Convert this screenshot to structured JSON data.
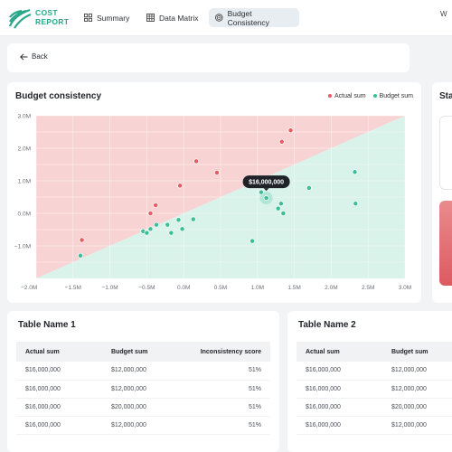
{
  "brand": {
    "line1": "COST",
    "line2": "REPORT",
    "accent": "#2aa889"
  },
  "nav": [
    {
      "label": "Summary",
      "icon": "grid-icon"
    },
    {
      "label": "Data Matrix",
      "icon": "table-icon"
    },
    {
      "label": "Budget Consistency",
      "icon": "target-icon",
      "active": true
    }
  ],
  "topright_text": "W",
  "back_label": "Back",
  "chart": {
    "title": "Budget consistency",
    "legend": [
      {
        "name": "Actual sum",
        "color": "#e35d63"
      },
      {
        "name": "Budget sum",
        "color": "#3bbf98"
      }
    ],
    "tooltip": "$16,000,000"
  },
  "chart_data": {
    "type": "scatter",
    "x_ticks": [
      "−1.5M",
      "−1.0M",
      "−0.5M",
      "0.0M",
      "0.5M",
      "1.0M",
      "1.5M",
      "2.0M",
      "2.5M",
      "3.0M"
    ],
    "x_edge_label": "−2.0M",
    "y_ticks": [
      "3.0M",
      "2.0M",
      "1.0M",
      "0.0M",
      "−1.0M"
    ],
    "xlim": [
      -2.0,
      3.0
    ],
    "ylim": [
      -2.0,
      3.0
    ],
    "grid": true,
    "regions": {
      "above_diagonal": "#f8d3d4",
      "below_diagonal": "#d9f2ea"
    },
    "series": [
      {
        "name": "Actual sum",
        "color": "#e35d63",
        "points": [
          [
            -1.38,
            -0.82
          ],
          [
            -0.45,
            0.0
          ],
          [
            -0.38,
            0.25
          ],
          [
            -0.05,
            0.85
          ],
          [
            0.17,
            1.6
          ],
          [
            0.45,
            1.25
          ],
          [
            1.33,
            2.2
          ],
          [
            1.45,
            2.55
          ]
        ]
      },
      {
        "name": "Budget sum",
        "color": "#3bbf98",
        "points": [
          [
            -1.4,
            -1.3
          ],
          [
            -0.55,
            -0.55
          ],
          [
            -0.5,
            -0.6
          ],
          [
            -0.45,
            -0.48
          ],
          [
            -0.37,
            -0.35
          ],
          [
            -0.22,
            -0.35
          ],
          [
            -0.17,
            -0.6
          ],
          [
            -0.07,
            -0.2
          ],
          [
            -0.02,
            -0.48
          ],
          [
            0.13,
            -0.18
          ],
          [
            0.93,
            -0.85
          ],
          [
            1.05,
            0.65
          ],
          [
            1.12,
            0.47
          ],
          [
            1.28,
            0.15
          ],
          [
            1.32,
            0.3
          ],
          [
            1.35,
            0.0
          ],
          [
            1.7,
            0.78
          ],
          [
            2.32,
            1.27
          ],
          [
            2.33,
            0.3
          ]
        ]
      }
    ],
    "highlight": {
      "x": 1.12,
      "y": 0.47,
      "label": "$16,000,000"
    }
  },
  "side": {
    "title": "Sta"
  },
  "tables": [
    {
      "title": "Table Name 1",
      "columns": [
        "Actual sum",
        "Budget sum",
        "Inconsistency score"
      ],
      "rows": [
        [
          "$16,000,000",
          "$12,000,000",
          "51%"
        ],
        [
          "$16,000,000",
          "$12,000,000",
          "51%"
        ],
        [
          "$16,000,000",
          "$20,000,000",
          "51%"
        ],
        [
          "$16,000,000",
          "$12,000,000",
          "51%"
        ]
      ]
    },
    {
      "title": "Table Name 2",
      "columns": [
        "Actual sum",
        "Budget sum"
      ],
      "rows": [
        [
          "$16,000,000",
          "$12,000,000"
        ],
        [
          "$16,000,000",
          "$12,000,000"
        ],
        [
          "$16,000,000",
          "$20,000,000"
        ],
        [
          "$16,000,000",
          "$12,000,000"
        ]
      ]
    }
  ]
}
